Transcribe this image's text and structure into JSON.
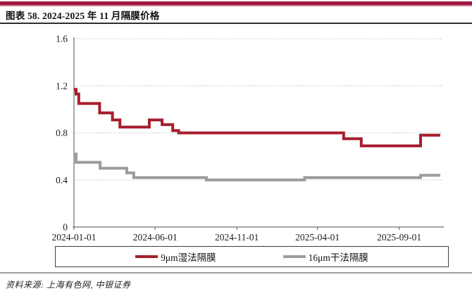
{
  "page": {
    "banner_color": "#A21540",
    "banner_accent_color": "#CE7D96"
  },
  "header": {
    "title": "图表 58. 2024-2025 年 11 月隔膜价格"
  },
  "legend": [
    {
      "label": "9μm湿法隔膜",
      "color": "#A61E2E"
    },
    {
      "label": "16μm干法隔膜",
      "color": "#9C9C9C"
    }
  ],
  "footer": {
    "source": "资料来源: 上海有色网, 中银证券"
  },
  "chart_data": {
    "type": "line",
    "title": "图表 58. 2024-2025 年 11 月隔膜价格",
    "x_type": "date",
    "interpolation": "step-after",
    "grid": "horizontal-dotted",
    "legend_position": "bottom",
    "ylim": [
      0,
      1.6
    ],
    "y_ticks": [
      0,
      0.4,
      0.8,
      1.2,
      1.6
    ],
    "y_tick_labels": [
      "0",
      "0.4",
      "0.8",
      "1.2",
      "1.6"
    ],
    "x_range": [
      "2024-01-01",
      "2025-11-17"
    ],
    "x_ticks": [
      "2024-01-01",
      "2024-06-01",
      "2024-11-01",
      "2025-04-01",
      "2025-09-01"
    ],
    "axis_color": "#6f6f6f",
    "grid_color": "#b8b8b8",
    "label_color": "#1c1c1c",
    "series": [
      {
        "name": "9μm湿法隔膜",
        "color": "#A61E2E",
        "points": [
          {
            "date": "2024-01-01",
            "value": 1.17
          },
          {
            "date": "2024-01-05",
            "value": 1.13
          },
          {
            "date": "2024-01-10",
            "value": 1.05
          },
          {
            "date": "2024-02-18",
            "value": 0.97
          },
          {
            "date": "2024-03-13",
            "value": 0.91
          },
          {
            "date": "2024-03-27",
            "value": 0.85
          },
          {
            "date": "2024-05-21",
            "value": 0.91
          },
          {
            "date": "2024-06-14",
            "value": 0.87
          },
          {
            "date": "2024-07-04",
            "value": 0.82
          },
          {
            "date": "2024-07-15",
            "value": 0.8
          },
          {
            "date": "2025-05-20",
            "value": 0.75
          },
          {
            "date": "2025-06-22",
            "value": 0.69
          },
          {
            "date": "2025-10-11",
            "value": 0.78
          },
          {
            "date": "2025-11-17",
            "value": 0.78
          }
        ]
      },
      {
        "name": "16μm干法隔膜",
        "color": "#9C9C9C",
        "points": [
          {
            "date": "2024-01-01",
            "value": 0.62
          },
          {
            "date": "2024-01-05",
            "value": 0.55
          },
          {
            "date": "2024-02-19",
            "value": 0.5
          },
          {
            "date": "2024-04-09",
            "value": 0.46
          },
          {
            "date": "2024-04-22",
            "value": 0.42
          },
          {
            "date": "2024-09-05",
            "value": 0.4
          },
          {
            "date": "2025-03-08",
            "value": 0.42
          },
          {
            "date": "2025-10-11",
            "value": 0.44
          },
          {
            "date": "2025-11-17",
            "value": 0.44
          }
        ]
      }
    ]
  }
}
